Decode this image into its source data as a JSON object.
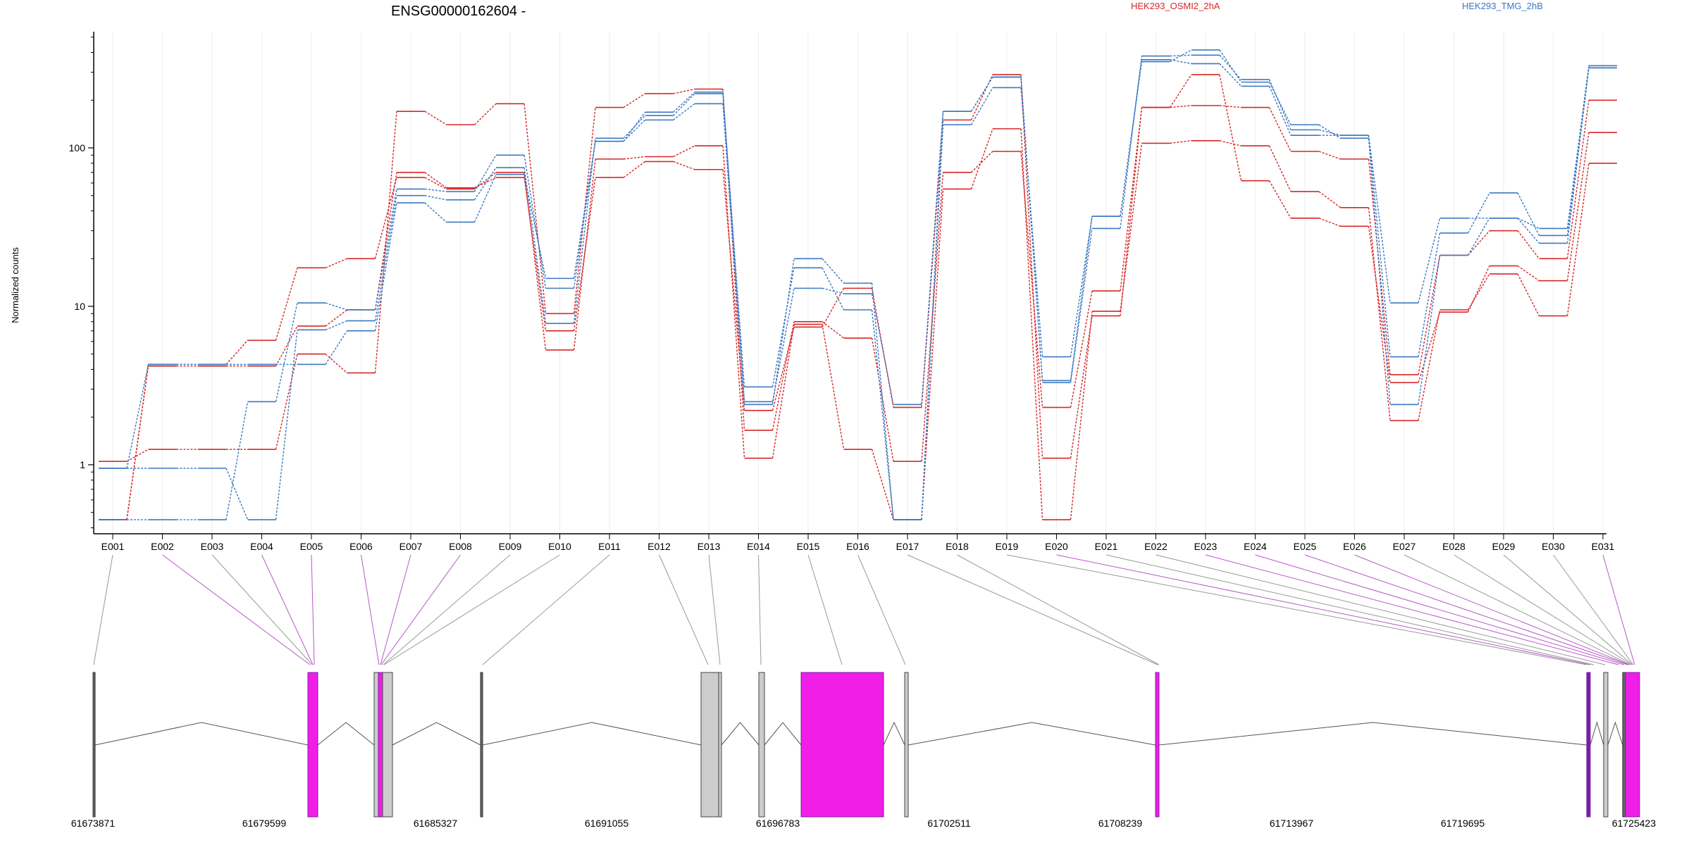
{
  "header": {
    "title": "ENSG00000162604 -",
    "legend_a": "HEK293_OSMI2_2hA",
    "legend_b": "HEK293_TMG_2hB"
  },
  "axis": {
    "ylabel": "Normalized counts",
    "yticks": [
      "1",
      "10",
      "100"
    ]
  },
  "colors": {
    "red": "#d62728",
    "blue": "#3b78c2",
    "magenta": "#f01ee6",
    "grey_exon": "#cccccc",
    "purple_edge": "#7a1fa2"
  },
  "chart_data": {
    "type": "line",
    "title": "ENSG00000162604 -",
    "ylabel": "Normalized counts",
    "yscale": "log",
    "ylim": [
      0.4,
      560
    ],
    "grid": "vertical per exon",
    "legend_placement": "top",
    "categories": [
      "E001",
      "E002",
      "E003",
      "E004",
      "E005",
      "E006",
      "E007",
      "E008",
      "E009",
      "E010",
      "E011",
      "E012",
      "E013",
      "E014",
      "E015",
      "E016",
      "E017",
      "E018",
      "E019",
      "E020",
      "E021",
      "E022",
      "E023",
      "E024",
      "E025",
      "E026",
      "E027",
      "E028",
      "E029",
      "E030",
      "E031"
    ],
    "series": [
      {
        "group": "HEK293_OSMI2_2hA",
        "color": "red",
        "values": [
          1.05,
          1.25,
          1.25,
          1.25,
          5.0,
          3.8,
          170,
          140,
          190,
          9.0,
          180,
          220,
          235,
          1.65,
          8.0,
          6.3,
          1.05,
          70,
          95,
          2.3,
          12.5,
          180,
          185,
          180,
          95,
          85,
          3.7,
          21,
          30,
          20,
          200
        ]
      },
      {
        "group": "HEK293_OSMI2_2hA",
        "color": "red",
        "values": [
          0.45,
          4.3,
          4.3,
          6.1,
          17.5,
          20,
          65,
          55,
          70,
          5.3,
          85,
          88,
          103,
          1.1,
          7.7,
          1.25,
          0.45,
          55,
          132,
          0.45,
          9.3,
          107,
          111,
          103,
          53,
          42,
          1.9,
          9.5,
          16,
          8.7,
          80
        ]
      },
      {
        "group": "HEK293_OSMI2_2hA",
        "color": "red",
        "values": [
          0.45,
          4.2,
          4.2,
          4.2,
          7.5,
          9.5,
          70,
          56,
          65,
          7.0,
          65,
          82,
          73,
          2.2,
          7.4,
          13,
          2.3,
          150,
          290,
          1.1,
          8.7,
          180,
          290,
          62,
          36,
          32,
          3.3,
          9.2,
          18,
          14.5,
          125
        ]
      },
      {
        "group": "HEK293_TMG_2hB",
        "color": "blue",
        "values": [
          0.95,
          4.3,
          4.3,
          4.3,
          4.3,
          7.0,
          45,
          34,
          68,
          15,
          110,
          150,
          190,
          2.4,
          20,
          14,
          0.45,
          170,
          280,
          3.3,
          31,
          380,
          385,
          270,
          130,
          120,
          10.5,
          36,
          36,
          25,
          320
        ]
      },
      {
        "group": "HEK293_TMG_2hB",
        "color": "blue",
        "values": [
          0.95,
          0.95,
          0.95,
          0.45,
          7.1,
          8.1,
          50,
          47,
          75,
          7.8,
          115,
          160,
          220,
          3.1,
          17.5,
          9.5,
          0.45,
          140,
          240,
          4.8,
          37,
          350,
          415,
          260,
          140,
          115,
          2.4,
          21,
          36,
          31,
          330
        ]
      },
      {
        "group": "HEK293_TMG_2hB",
        "color": "blue",
        "values": [
          0.45,
          0.45,
          0.45,
          2.5,
          10.5,
          9.5,
          55,
          53,
          90,
          13,
          110,
          168,
          225,
          2.5,
          13,
          12,
          2.4,
          170,
          280,
          3.4,
          37,
          360,
          340,
          245,
          120,
          120,
          4.8,
          29,
          52,
          28,
          320
        ]
      }
    ]
  },
  "gene_model": {
    "coordinate_labels": [
      "61673871",
      "61679599",
      "61685327",
      "61691055",
      "61696783",
      "61702511",
      "61708239",
      "61713967",
      "61719695",
      "61725423"
    ],
    "exon_kinds": [
      "grey",
      "purple",
      "grey",
      "purple",
      "purple",
      "purple",
      "purple",
      "purple",
      "grey",
      "grey",
      "grey",
      "grey",
      "grey",
      "grey",
      "grey",
      "grey",
      "grey",
      "grey",
      "grey",
      "purple",
      "grey",
      "grey",
      "purple",
      "purple",
      "purple",
      "purple",
      "grey",
      "grey",
      "grey",
      "grey",
      "purple"
    ]
  }
}
